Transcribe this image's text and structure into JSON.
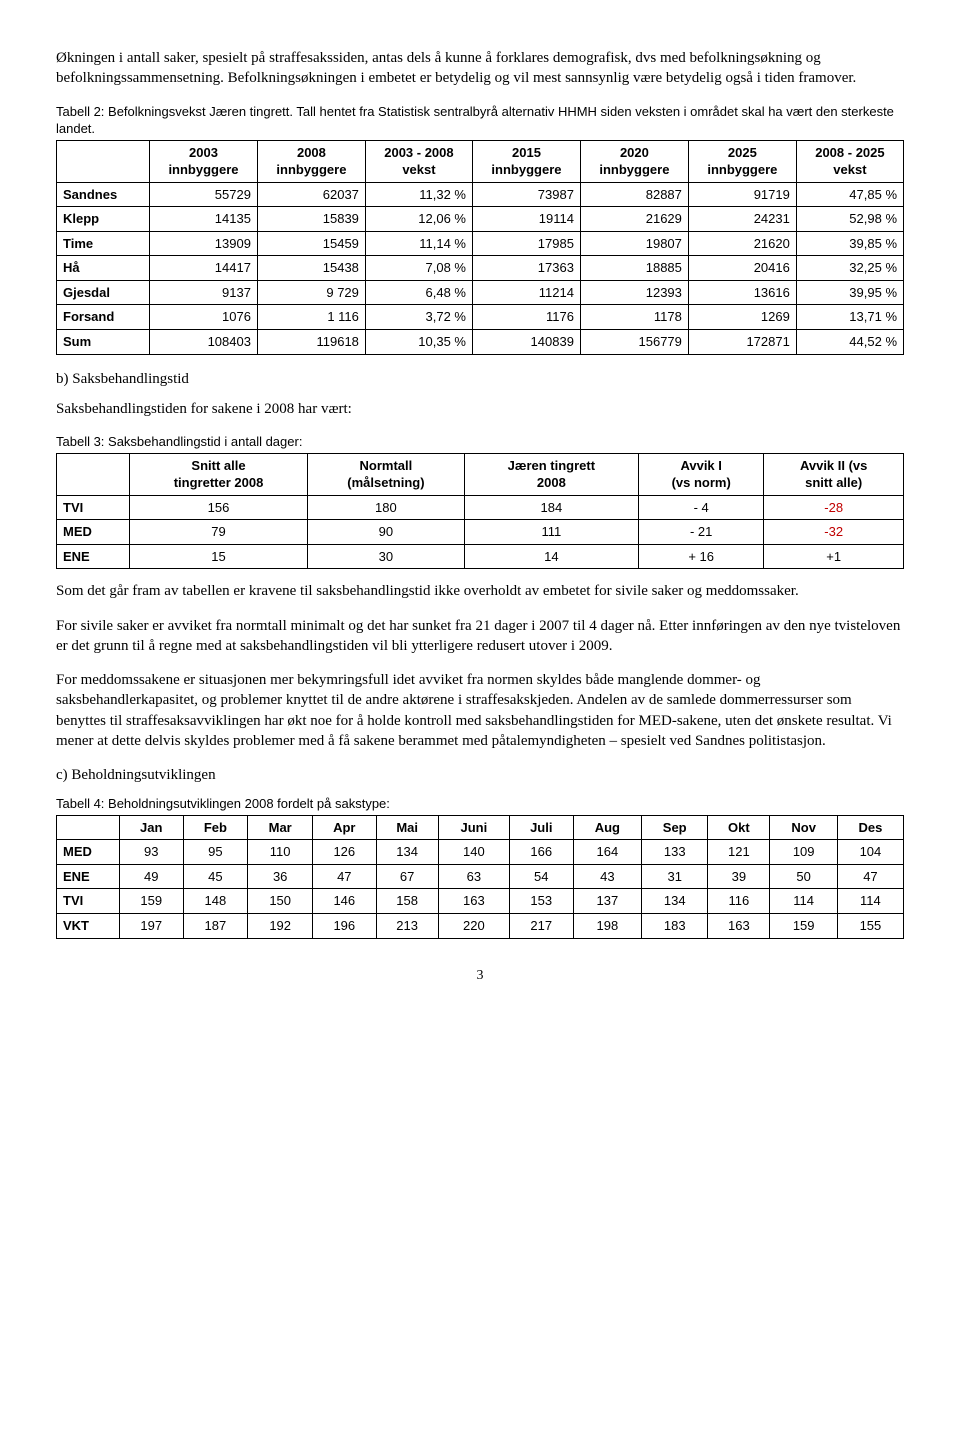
{
  "para1": "Økningen i antall saker, spesielt på straffesakssiden, antas dels å kunne å forklares demografisk, dvs med befolkningsøkning og befolkningssammensetning. Befolkningsøkningen i embetet er betydelig og vil mest sannsynlig være betydelig også i tiden framover.",
  "t2_caption": "Tabell 2: Befolkningsvekst Jæren tingrett. Tall hentet fra Statistisk sentralbyrå alternativ HHMH siden veksten i området skal ha vært den sterkeste landet.",
  "t2": {
    "head": [
      "",
      "2003\ninnbyggere",
      "2008\ninnbyggere",
      "2003 - 2008\nvekst",
      "2015\ninnbyggere",
      "2020\ninnbyggere",
      "2025\ninnbyggere",
      "2008 - 2025\nvekst"
    ],
    "rows": [
      [
        "Sandnes",
        "55729",
        "62037",
        "11,32 %",
        "73987",
        "82887",
        "91719",
        "47,85 %"
      ],
      [
        "Klepp",
        "14135",
        "15839",
        "12,06 %",
        "19114",
        "21629",
        "24231",
        "52,98 %"
      ],
      [
        "Time",
        "13909",
        "15459",
        "11,14 %",
        "17985",
        "19807",
        "21620",
        "39,85 %"
      ],
      [
        "Hå",
        "14417",
        "15438",
        "7,08 %",
        "17363",
        "18885",
        "20416",
        "32,25 %"
      ],
      [
        "Gjesdal",
        "9137",
        "9 729",
        "6,48 %",
        "11214",
        "12393",
        "13616",
        "39,95 %"
      ],
      [
        "Forsand",
        "1076",
        "1 116",
        "3,72 %",
        "1176",
        "1178",
        "1269",
        "13,71 %"
      ],
      [
        "Sum",
        "108403",
        "119618",
        "10,35 %",
        "140839",
        "156779",
        "172871",
        "44,52 %"
      ]
    ]
  },
  "sec_b": "b) Saksbehandlingstid",
  "para_b": "Saksbehandlingstiden for sakene i 2008 har vært:",
  "t3_caption": "Tabell 3: Saksbehandlingstid i antall dager:",
  "t3": {
    "head": [
      "",
      "Snitt alle\ntingretter 2008",
      "Normtall\n(målsetning)",
      "Jæren tingrett\n2008",
      "Avvik I\n(vs norm)",
      "Avvik II (vs\nsnitt alle)"
    ],
    "rows": [
      [
        "TVI",
        "156",
        "180",
        "184",
        "- 4",
        "-28"
      ],
      [
        "MED",
        "79",
        "90",
        "111",
        "- 21",
        "-32"
      ],
      [
        "ENE",
        "15",
        "30",
        "14",
        "+ 16",
        "+1"
      ]
    ],
    "neg_cols_last": true
  },
  "para_after_t3_1": "Som det går fram av tabellen er kravene til saksbehandlingstid ikke overholdt av embetet for sivile saker og meddomssaker.",
  "para_after_t3_2": "For sivile saker er avviket fra normtall minimalt og det har sunket fra 21 dager i 2007 til 4 dager nå. Etter innføringen av den nye tvisteloven er det grunn til å regne med at saksbehandlingstiden vil bli ytterligere redusert utover i 2009.",
  "para_after_t3_3": "For meddomssakene er situasjonen mer bekymringsfull idet avviket fra normen skyldes både manglende dommer- og saksbehandlerkapasitet, og problemer knyttet til de andre aktørene i straffesakskjeden. Andelen av de samlede dommerressurser som benyttes til straffesaksavviklingen har økt noe for å holde kontroll med saksbehandlingstiden for MED-sakene, uten det ønskete resultat. Vi mener at dette delvis skyldes problemer med å få sakene berammet med påtalemyndigheten – spesielt ved Sandnes politistasjon.",
  "sec_c": "c) Beholdningsutviklingen",
  "t4_caption": "Tabell 4: Beholdningsutviklingen 2008 fordelt på sakstype:",
  "t4": {
    "head": [
      "",
      "Jan",
      "Feb",
      "Mar",
      "Apr",
      "Mai",
      "Juni",
      "Juli",
      "Aug",
      "Sep",
      "Okt",
      "Nov",
      "Des"
    ],
    "rows": [
      [
        "MED",
        "93",
        "95",
        "110",
        "126",
        "134",
        "140",
        "166",
        "164",
        "133",
        "121",
        "109",
        "104"
      ],
      [
        "ENE",
        "49",
        "45",
        "36",
        "47",
        "67",
        "63",
        "54",
        "43",
        "31",
        "39",
        "50",
        "47"
      ],
      [
        "TVI",
        "159",
        "148",
        "150",
        "146",
        "158",
        "163",
        "153",
        "137",
        "134",
        "116",
        "114",
        "114"
      ],
      [
        "VKT",
        "197",
        "187",
        "192",
        "196",
        "213",
        "220",
        "217",
        "198",
        "183",
        "163",
        "159",
        "155"
      ]
    ]
  },
  "page_num": "3"
}
